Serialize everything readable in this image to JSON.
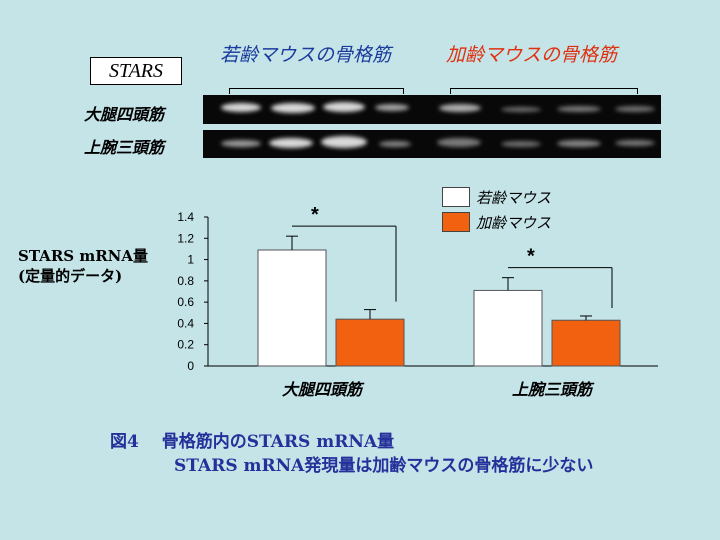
{
  "stars_label": "STARS",
  "groups": {
    "young": "若齢マウスの骨格筋",
    "aged": "加齢マウスの骨格筋"
  },
  "blot_rows": [
    "大腿四頭筋",
    "上腕三頭筋"
  ],
  "colors": {
    "young": "#ffffff",
    "aged": "#f26110",
    "caption": "#26309a",
    "background": "#c4e4e8"
  },
  "chart_data": {
    "type": "bar",
    "ylabel": [
      "STARS mRNA量",
      "(定量的データ)"
    ],
    "ylim": [
      0,
      1.4
    ],
    "yticks": [
      "0",
      "0.2",
      "0.4",
      "0.6",
      "0.8",
      "1",
      "1.2",
      "1.4"
    ],
    "categories": [
      "大腿四頭筋",
      "上腕三頭筋"
    ],
    "series": [
      {
        "name": "若齢マウス",
        "values": [
          1.09,
          0.71
        ],
        "errors": [
          0.13,
          0.12
        ],
        "color": "#ffffff"
      },
      {
        "name": "加齢マウス",
        "values": [
          0.44,
          0.43
        ],
        "errors": [
          0.09,
          0.04
        ],
        "color": "#f26110"
      }
    ],
    "significance": [
      "*",
      "*"
    ],
    "legend_position": "top-right",
    "grid": false
  },
  "caption": {
    "line1": "図4　 骨格筋内のSTARS mRNA量",
    "line2": "STARS mRNA発現量は加齢マウスの骨格筋に少ない"
  }
}
